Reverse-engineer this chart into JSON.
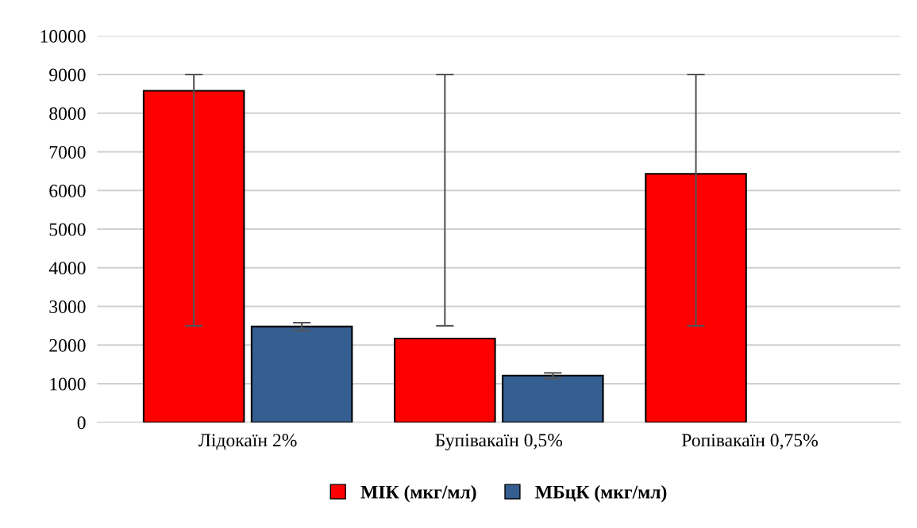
{
  "chart_data": {
    "type": "bar",
    "categories": [
      "Лідокаїн 2%",
      "Бупівакаїн 0,5%",
      "Ропівакаїн 0,75%"
    ],
    "series": [
      {
        "name": "МІК (мкг/мл)",
        "color": "#ff0000",
        "values": [
          8580,
          2170,
          6430
        ],
        "errors": [
          [
            2500,
            9000
          ],
          [
            2500,
            9000
          ],
          [
            2500,
            9000
          ]
        ]
      },
      {
        "name": "МБцК (мкг/мл)",
        "color": "#355e91",
        "values": [
          2480,
          1210,
          null
        ],
        "errors": [
          [
            2380,
            2580
          ],
          [
            1140,
            1280
          ],
          null
        ]
      }
    ],
    "ylim": [
      0,
      10000
    ],
    "yticks": [
      0,
      1000,
      2000,
      3000,
      4000,
      5000,
      6000,
      7000,
      8000,
      9000,
      10000
    ],
    "grid": "y",
    "legend": "bottom"
  }
}
